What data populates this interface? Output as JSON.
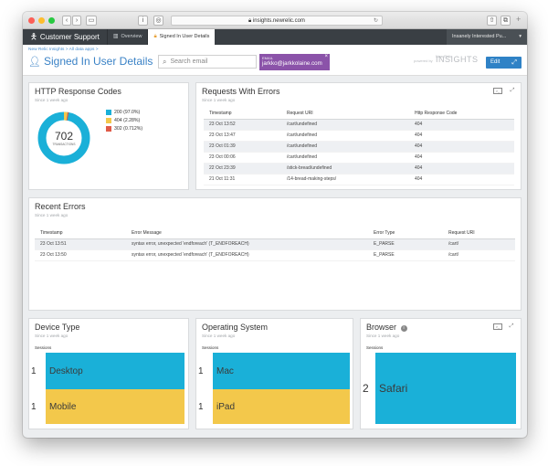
{
  "browser": {
    "url": "insights.newrelic.com"
  },
  "nav": {
    "brand": "Customer Support",
    "tabs": [
      {
        "label": "Overview",
        "active": false
      },
      {
        "label": "Signed In User Details",
        "active": true
      }
    ],
    "account": "Insanely Interested Pu..."
  },
  "header": {
    "breadcrumb": "New Relic Insights  >  All data apps  >",
    "title": "Signed In User Details",
    "search_placeholder": "Search email",
    "filter_label": "EMAIL",
    "filter_value": "jarkko@jarkkolaine.com",
    "powered_by": "powered by",
    "new_relic": "New Relic",
    "insights": "INSIGHTS",
    "edit_label": "Edit"
  },
  "http_panel": {
    "title": "HTTP Response Codes",
    "subtitle": "Since 1 week ago",
    "total": "702",
    "total_label": "TRANSACTIONS",
    "legend": [
      {
        "label": "200 (97.0%)",
        "color": "#1ab0d8"
      },
      {
        "label": "404 (2.28%)",
        "color": "#f3c84b"
      },
      {
        "label": "302 (0.712%)",
        "color": "#e05a47"
      }
    ]
  },
  "errors_panel": {
    "title": "Requests With Errors",
    "subtitle": "Since 1 week ago",
    "columns": [
      "Timestamp",
      "Request URI",
      "Http Response Code"
    ],
    "rows": [
      [
        "23 Oct 13:52",
        "/cart/undefined",
        "404"
      ],
      [
        "23 Oct 13:47",
        "/cart/undefined",
        "404"
      ],
      [
        "23 Oct 01:39",
        "/cart/undefined",
        "404"
      ],
      [
        "23 Oct 00:06",
        "/cart/undefined",
        "404"
      ],
      [
        "22 Oct 23:39",
        "/stick-bread/undefined",
        "404"
      ],
      [
        "21 Oct 11:31",
        "/14-bread-making-steps/",
        "404"
      ]
    ]
  },
  "recent_panel": {
    "title": "Recent Errors",
    "subtitle": "Since 1 week ago",
    "columns": [
      "Timestamp",
      "Error Message",
      "Error Type",
      "Request URI"
    ],
    "rows": [
      [
        "23 Oct 13:51",
        "syntax error, unexpected 'endforeach' (T_ENDFOREACH)",
        "E_PARSE",
        "/cart/"
      ],
      [
        "23 Oct 13:50",
        "syntax error, unexpected 'endforeach' (T_ENDFOREACH)",
        "E_PARSE",
        "/cart/"
      ]
    ]
  },
  "device_panel": {
    "title": "Device Type",
    "subtitle": "Since 1 week ago",
    "sessions_label": "Sessions",
    "items": [
      {
        "count": "1",
        "label": "Desktop",
        "color": "#1ab0d8"
      },
      {
        "count": "1",
        "label": "Mobile",
        "color": "#f3c84b"
      }
    ]
  },
  "os_panel": {
    "title": "Operating System",
    "subtitle": "Since 1 week ago",
    "sessions_label": "Sessions",
    "items": [
      {
        "count": "1",
        "label": "Mac",
        "color": "#1ab0d8"
      },
      {
        "count": "1",
        "label": "iPad",
        "color": "#f3c84b"
      }
    ]
  },
  "browser_panel": {
    "title": "Browser",
    "subtitle": "Since 1 week ago",
    "sessions_label": "Sessions",
    "items": [
      {
        "count": "2",
        "label": "Safari",
        "color": "#1ab0d8"
      }
    ]
  }
}
